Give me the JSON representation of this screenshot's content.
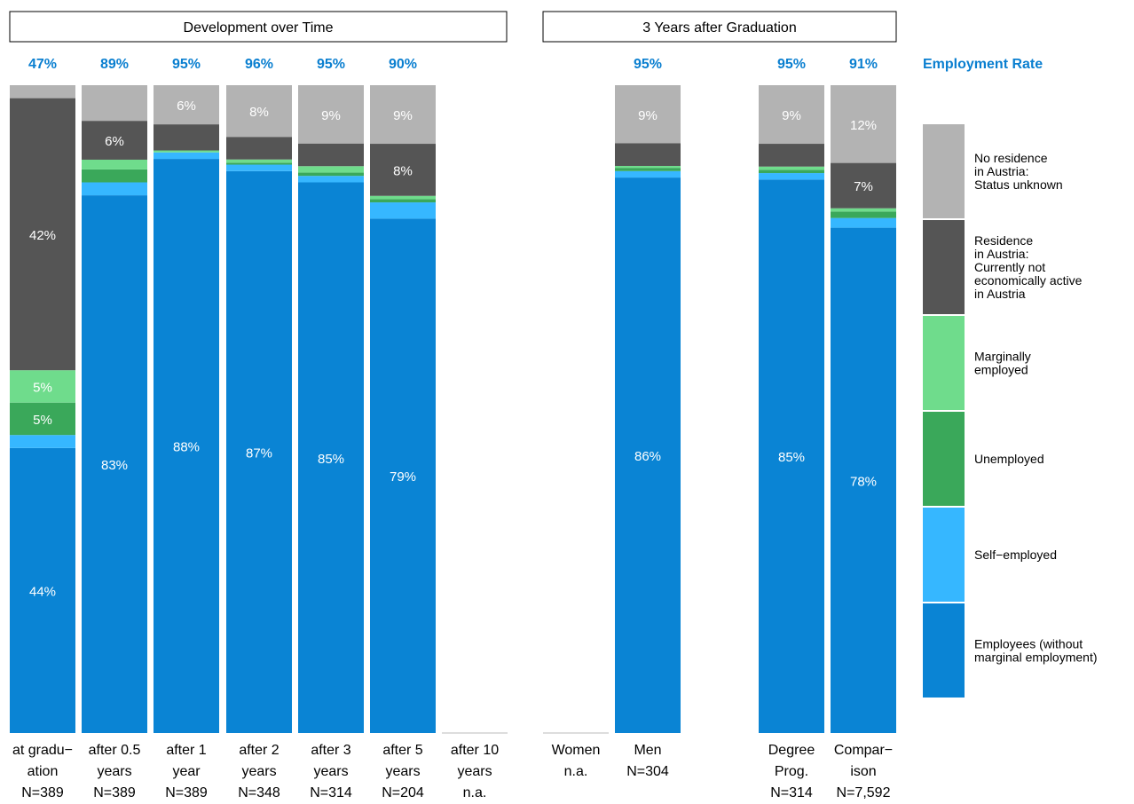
{
  "chart_data": {
    "type": "bar",
    "panel_headers": [
      "Development over Time",
      "3 Years after Graduation"
    ],
    "legend_title": "Employment Rate",
    "series": [
      {
        "name": "Employees (without marginal employment)",
        "color": "#0a84d4",
        "values": [
          44,
          83,
          88,
          87,
          85,
          79,
          null,
          null,
          86,
          85,
          78
        ]
      },
      {
        "name": "Self−employed",
        "color": "#36b7ff",
        "values": [
          2,
          2,
          1,
          1,
          1,
          2.5,
          null,
          null,
          1,
          1,
          1.5
        ]
      },
      {
        "name": "Unemployed",
        "color": "#3aa85a",
        "values": [
          5,
          2,
          0,
          0.3,
          0.5,
          0.5,
          null,
          null,
          0.5,
          0.5,
          1
        ]
      },
      {
        "name": "Marginally employed",
        "color": "#6fdc8c",
        "values": [
          5,
          1.5,
          0.3,
          0.5,
          1,
          0.5,
          null,
          null,
          0.3,
          0.5,
          0.5
        ]
      },
      {
        "name": "Residence in Austria: Currently not economically active in Austria",
        "color": "#555555",
        "values": [
          42,
          6,
          4,
          3.5,
          3.5,
          8,
          null,
          null,
          3.5,
          3.5,
          7
        ]
      },
      {
        "name": "No residence in Austria: Status unknown",
        "color": "#b3b3b3",
        "values": [
          2,
          5.5,
          6,
          8,
          9,
          9,
          null,
          null,
          9,
          9,
          12
        ]
      }
    ],
    "legend_labels": [
      [
        "No residence",
        "in Austria:",
        "Status unknown"
      ],
      [
        "Residence",
        "in Austria:",
        "Currently not",
        "economically active",
        "in Austria"
      ],
      [
        "Marginally",
        "employed"
      ],
      [
        "Unemployed"
      ],
      [
        "Self−employed"
      ],
      [
        "Employees (without",
        "marginal employment)"
      ]
    ],
    "bars": [
      {
        "label": [
          "at gradu−",
          "ation",
          "N=389"
        ],
        "rate": "47%",
        "seg_labels": [
          "44%",
          null,
          "5%",
          "5%",
          "42%",
          null
        ]
      },
      {
        "label": [
          "after 0.5",
          "years",
          "N=389"
        ],
        "rate": "89%",
        "seg_labels": [
          "83%",
          null,
          null,
          null,
          "6%",
          null
        ]
      },
      {
        "label": [
          "after 1",
          "year",
          "N=389"
        ],
        "rate": "95%",
        "seg_labels": [
          "88%",
          null,
          null,
          null,
          null,
          "6%"
        ]
      },
      {
        "label": [
          "after 2",
          "years",
          "N=348"
        ],
        "rate": "96%",
        "seg_labels": [
          "87%",
          null,
          null,
          null,
          null,
          "8%"
        ]
      },
      {
        "label": [
          "after 3",
          "years",
          "N=314"
        ],
        "rate": "95%",
        "seg_labels": [
          "85%",
          null,
          null,
          null,
          null,
          "9%"
        ]
      },
      {
        "label": [
          "after 5",
          "years",
          "N=204"
        ],
        "rate": "90%",
        "seg_labels": [
          "79%",
          null,
          null,
          null,
          "8%",
          "9%"
        ]
      },
      {
        "label": [
          "after 10",
          "years",
          "n.a."
        ],
        "rate": "",
        "seg_labels": [
          null,
          null,
          null,
          null,
          null,
          null
        ]
      },
      {
        "label": [
          "Women",
          "n.a."
        ],
        "rate": "",
        "seg_labels": [
          null,
          null,
          null,
          null,
          null,
          null
        ]
      },
      {
        "label": [
          "Men",
          "N=304"
        ],
        "rate": "95%",
        "seg_labels": [
          "86%",
          null,
          null,
          null,
          null,
          "9%"
        ]
      },
      {
        "label": [
          "Degree",
          "Prog.",
          "N=314"
        ],
        "rate": "95%",
        "seg_labels": [
          "85%",
          null,
          null,
          null,
          null,
          "9%"
        ]
      },
      {
        "label": [
          "Compar−",
          "ison",
          "N=7,592"
        ],
        "rate": "91%",
        "seg_labels": [
          "78%",
          null,
          null,
          null,
          "7%",
          "12%"
        ]
      }
    ],
    "ylim": [
      0,
      100
    ]
  }
}
